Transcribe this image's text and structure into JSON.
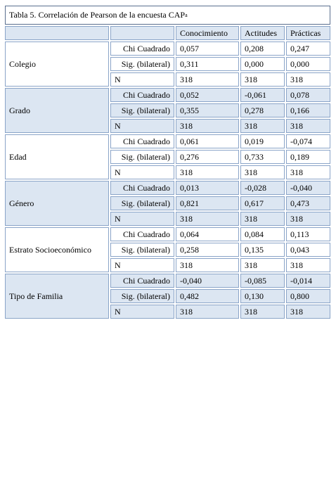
{
  "table": {
    "title": "Tabla 5. Correlación de Pearson de la encuesta CAP",
    "title_sup": "a",
    "columns": [
      "Conocimiento",
      "Actitudes",
      "Prácticas"
    ],
    "groups": [
      {
        "label": "Colegio",
        "rows": [
          {
            "stat": "Chi Cuadrado",
            "values": [
              "0,057",
              "0,208",
              "0,247"
            ]
          },
          {
            "stat": "Sig. (bilateral)",
            "values": [
              "0,311",
              "0,000",
              "0,000"
            ]
          },
          {
            "stat": "N",
            "values": [
              "318",
              "318",
              "318"
            ]
          }
        ]
      },
      {
        "label": "Grado",
        "rows": [
          {
            "stat": "Chi Cuadrado",
            "values": [
              "0,052",
              "-0,061",
              "0,078"
            ]
          },
          {
            "stat": "Sig. (bilateral)",
            "values": [
              "0,355",
              "0,278",
              "0,166"
            ]
          },
          {
            "stat": "N",
            "values": [
              "318",
              "318",
              "318"
            ]
          }
        ]
      },
      {
        "label": "Edad",
        "rows": [
          {
            "stat": "Chi Cuadrado",
            "values": [
              "0,061",
              "0,019",
              "-0,074"
            ]
          },
          {
            "stat": "Sig. (bilateral)",
            "values": [
              "0,276",
              "0,733",
              "0,189"
            ]
          },
          {
            "stat": "N",
            "values": [
              "318",
              "318",
              "318"
            ]
          }
        ]
      },
      {
        "label": "Género",
        "rows": [
          {
            "stat": "Chi Cuadrado",
            "values": [
              "0,013",
              "-0,028",
              "-0,040"
            ]
          },
          {
            "stat": "Sig. (bilateral)",
            "values": [
              "0,821",
              "0,617",
              "0,473"
            ]
          },
          {
            "stat": "N",
            "values": [
              "318",
              "318",
              "318"
            ]
          }
        ]
      },
      {
        "label": "Estrato Socioeconómico",
        "rows": [
          {
            "stat": "Chi Cuadrado",
            "values": [
              "0,064",
              "0,084",
              "0,113"
            ]
          },
          {
            "stat": "Sig. (bilateral)",
            "values": [
              "0,258",
              "0,135",
              "0,043"
            ]
          },
          {
            "stat": "N",
            "values": [
              "318",
              "318",
              "318"
            ]
          }
        ]
      },
      {
        "label": "Tipo de Familia",
        "rows": [
          {
            "stat": "Chi Cuadrado",
            "values": [
              "-0,040",
              "-0,085",
              "-0,014"
            ]
          },
          {
            "stat": "Sig. (bilateral)",
            "values": [
              "0,482",
              "0,130",
              "0,800"
            ]
          },
          {
            "stat": "N",
            "values": [
              "318",
              "318",
              "318"
            ]
          }
        ]
      }
    ]
  }
}
